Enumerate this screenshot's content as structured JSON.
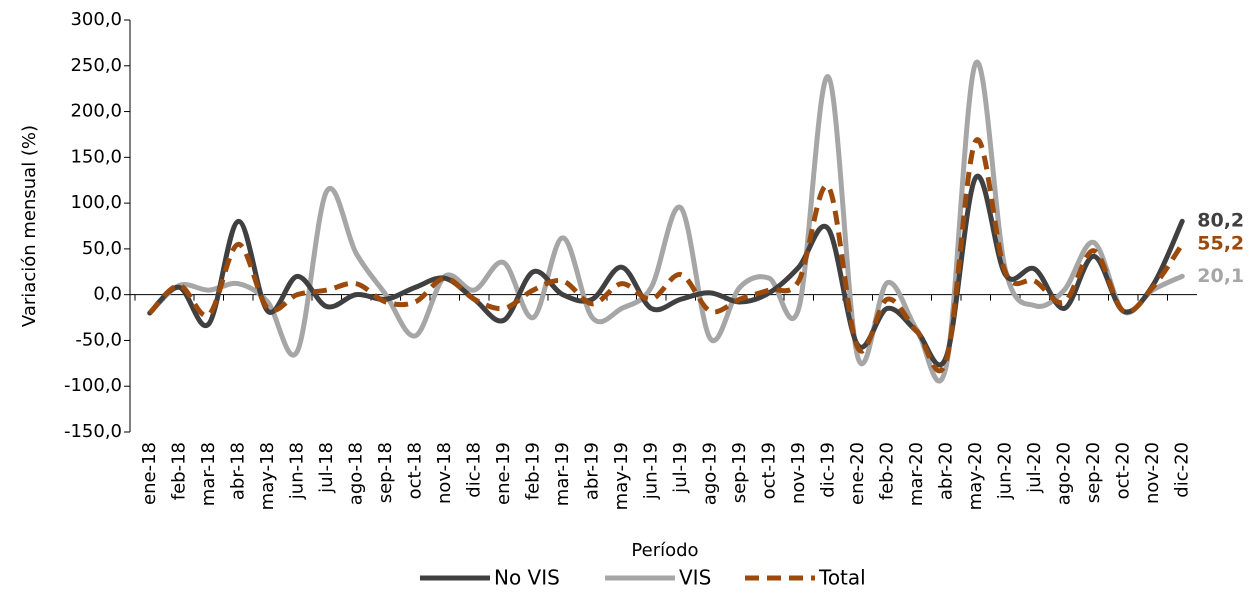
{
  "chart_data": {
    "type": "line",
    "y_axis_label": "Variación mensual (%)",
    "x_axis_label": "Período",
    "categories": [
      "ene-18",
      "feb-18",
      "mar-18",
      "abr-18",
      "may-18",
      "jun-18",
      "jul-18",
      "ago-18",
      "sep-18",
      "oct-18",
      "nov-18",
      "dic-18",
      "ene-19",
      "feb-19",
      "mar-19",
      "abr-19",
      "may-19",
      "jun-19",
      "jul-19",
      "ago-19",
      "sep-19",
      "oct-19",
      "nov-19",
      "dic-19",
      "ene-20",
      "feb-20",
      "mar-20",
      "abr-20",
      "may-20",
      "jun-20",
      "jul-20",
      "ago-20",
      "sep-20",
      "oct-20",
      "nov-20",
      "dic-20"
    ],
    "ylim": [
      -150,
      300
    ],
    "yticks": [
      {
        "value": -150,
        "label": "-150,0"
      },
      {
        "value": -100,
        "label": "-100,0"
      },
      {
        "value": -50,
        "label": "-50,0"
      },
      {
        "value": 0,
        "label": "0,0"
      },
      {
        "value": 50,
        "label": "50,0"
      },
      {
        "value": 100,
        "label": "100,0"
      },
      {
        "value": 150,
        "label": "150,0"
      },
      {
        "value": 200,
        "label": "200,0"
      },
      {
        "value": 250,
        "label": "250,0"
      },
      {
        "value": 300,
        "label": "300,0"
      }
    ],
    "legend": "bottom",
    "series": [
      {
        "name": "No VIS",
        "color": "#404040",
        "dashed": false,
        "values": [
          -20,
          8,
          -32,
          80,
          -18,
          20,
          -13,
          0,
          -5,
          8,
          18,
          -5,
          -28,
          25,
          0,
          -5,
          30,
          -15,
          -5,
          2,
          -8,
          2,
          30,
          72,
          -55,
          -15,
          -40,
          -68,
          128,
          22,
          28,
          -15,
          42,
          -18,
          10,
          80.2
        ],
        "value_labels": {
          "35": "80,2"
        }
      },
      {
        "name": "VIS",
        "color": "#a6a6a6",
        "dashed": false,
        "values": [
          -20,
          10,
          5,
          12,
          -8,
          -62,
          113,
          45,
          0,
          -45,
          20,
          5,
          35,
          -25,
          62,
          -25,
          -15,
          8,
          95,
          -48,
          8,
          18,
          -15,
          238,
          -68,
          13,
          -38,
          -78,
          253,
          28,
          -12,
          5,
          57,
          -18,
          5,
          20.1
        ],
        "value_labels": {
          "35": "20,1"
        }
      },
      {
        "name": "Total",
        "color": "#9c4a0c",
        "dashed": true,
        "values": [
          -20,
          10,
          -22,
          55,
          -15,
          0,
          5,
          12,
          -8,
          -8,
          18,
          -5,
          -15,
          5,
          15,
          -10,
          12,
          -5,
          22,
          -18,
          -5,
          5,
          15,
          118,
          -58,
          -5,
          -40,
          -72,
          168,
          25,
          15,
          -8,
          48,
          -18,
          8,
          55.2
        ],
        "value_labels": {
          "35": "55,2"
        }
      }
    ]
  }
}
